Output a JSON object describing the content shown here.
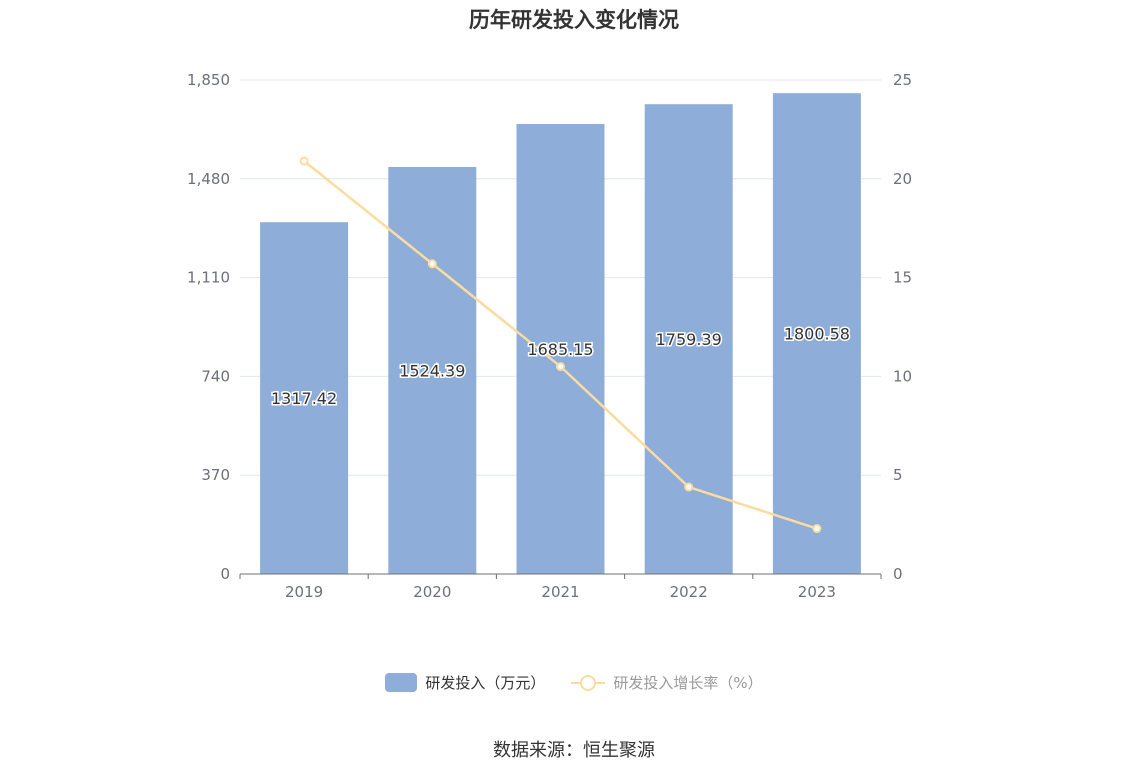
{
  "chart_data": {
    "type": "bar",
    "title": "历年研发投入变化情况",
    "categories": [
      "2019",
      "2020",
      "2021",
      "2022",
      "2023"
    ],
    "series": [
      {
        "name": "研发投入（万元）",
        "type": "bar",
        "axis": "left",
        "values": [
          1317.42,
          1524.39,
          1685.15,
          1759.39,
          1800.58
        ],
        "labels": [
          "1317.42",
          "1524.39",
          "1685.15",
          "1759.39",
          "1800.58"
        ],
        "color": "#8eadd9"
      },
      {
        "name": "研发投入增长率（%）",
        "type": "line",
        "axis": "right",
        "values": [
          20.9,
          15.7,
          10.5,
          4.4,
          2.3
        ],
        "color": "#fcdba0"
      }
    ],
    "y_left": {
      "min": 0,
      "max": 1850,
      "ticks": [
        0,
        370,
        740,
        1110,
        1480,
        1850
      ],
      "tick_labels": [
        "0",
        "370",
        "740",
        "1,110",
        "1,480",
        "1,850"
      ]
    },
    "y_right": {
      "min": 0,
      "max": 25,
      "ticks": [
        0,
        5,
        10,
        15,
        20,
        25
      ],
      "tick_labels": [
        "0",
        "5",
        "10",
        "15",
        "20",
        "25"
      ]
    },
    "grid": true,
    "legend_position": "bottom"
  },
  "source": "数据来源：恒生聚源"
}
